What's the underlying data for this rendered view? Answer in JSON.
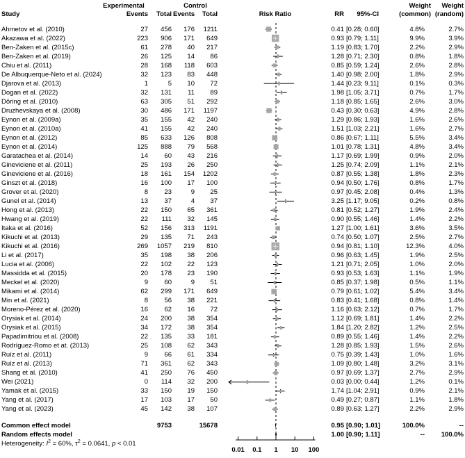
{
  "header": {
    "study": "Study",
    "experimental": "Experimental",
    "control": "Control",
    "exp_events": "Events",
    "exp_total": "Total",
    "ctrl_events": "Events",
    "ctrl_total": "Total",
    "risk_ratio": "Risk Ratio",
    "rr": "RR",
    "ci": "95%-CI",
    "weight_common_line1": "Weight",
    "weight_common_line2": "(common)",
    "weight_random_line1": "Weight",
    "weight_random_line2": "(random)"
  },
  "heterogeneity_parts": [
    {
      "t": "Heterogeneity: "
    },
    {
      "t": "I",
      "i": true
    },
    {
      "t": "2",
      "sup": true
    },
    {
      "t": " = 60%, "
    },
    {
      "t": "τ"
    },
    {
      "t": "2",
      "sup": true
    },
    {
      "t": " = 0.0641, "
    },
    {
      "t": "p",
      "i": true
    },
    {
      "t": " < 0.01"
    }
  ],
  "colors": {
    "square": "#a6a6a6",
    "square_cross": "#d9d9d9",
    "line": "#000000",
    "diamond": "#000000",
    "text": "#000000"
  },
  "chart_data": {
    "type": "forest",
    "title": "Risk Ratio",
    "x_scale": "log",
    "x_ticks": [
      0.01,
      0.1,
      1,
      10,
      100
    ],
    "ref_line": 1,
    "studies": [
      {
        "name": "Ahmetov et al. (2010)",
        "exp_events": 27,
        "exp_total": 456,
        "ctrl_events": 176,
        "ctrl_total": 1211,
        "rr": 0.41,
        "ci_low": 0.28,
        "ci_high": 0.6,
        "weight_common": 4.8,
        "weight_random": 2.7
      },
      {
        "name": "Akazawa et al. (2022)",
        "exp_events": 223,
        "exp_total": 906,
        "ctrl_events": 171,
        "ctrl_total": 649,
        "rr": 0.93,
        "ci_low": 0.79,
        "ci_high": 1.11,
        "weight_common": 9.9,
        "weight_random": 3.9
      },
      {
        "name": "Ben-Zaken et al. (2015c)",
        "exp_events": 61,
        "exp_total": 278,
        "ctrl_events": 40,
        "ctrl_total": 217,
        "rr": 1.19,
        "ci_low": 0.83,
        "ci_high": 1.7,
        "weight_common": 2.2,
        "weight_random": 2.9
      },
      {
        "name": "Ben-Zaken et al. (2019)",
        "exp_events": 26,
        "exp_total": 125,
        "ctrl_events": 14,
        "ctrl_total": 86,
        "rr": 1.28,
        "ci_low": 0.71,
        "ci_high": 2.3,
        "weight_common": 0.8,
        "weight_random": 1.8
      },
      {
        "name": "Chiu et al. (2011)",
        "exp_events": 28,
        "exp_total": 168,
        "ctrl_events": 118,
        "ctrl_total": 603,
        "rr": 0.85,
        "ci_low": 0.59,
        "ci_high": 1.24,
        "weight_common": 2.6,
        "weight_random": 2.8
      },
      {
        "name": "De Albuquerque-Neto et al. (2024)",
        "exp_events": 32,
        "exp_total": 123,
        "ctrl_events": 83,
        "ctrl_total": 448,
        "rr": 1.4,
        "ci_low": 0.98,
        "ci_high": 2.0,
        "weight_common": 1.8,
        "weight_random": 2.9
      },
      {
        "name": "Djarova et al. (2013)",
        "exp_events": 1,
        "exp_total": 5,
        "ctrl_events": 10,
        "ctrl_total": 72,
        "rr": 1.44,
        "ci_low": 0.23,
        "ci_high": 9.11,
        "weight_common": 0.1,
        "weight_random": 0.3
      },
      {
        "name": "Dogan et al. (2022)",
        "exp_events": 32,
        "exp_total": 131,
        "ctrl_events": 11,
        "ctrl_total": 89,
        "rr": 1.98,
        "ci_low": 1.05,
        "ci_high": 3.71,
        "weight_common": 0.7,
        "weight_random": 1.7
      },
      {
        "name": "Döring et al. (2010)",
        "exp_events": 63,
        "exp_total": 305,
        "ctrl_events": 51,
        "ctrl_total": 292,
        "rr": 1.18,
        "ci_low": 0.85,
        "ci_high": 1.65,
        "weight_common": 2.6,
        "weight_random": 3.0
      },
      {
        "name": "Druzhevskaya et al. (2008)",
        "exp_events": 30,
        "exp_total": 486,
        "ctrl_events": 171,
        "ctrl_total": 1197,
        "rr": 0.43,
        "ci_low": 0.3,
        "ci_high": 0.63,
        "weight_common": 4.9,
        "weight_random": 2.8
      },
      {
        "name": "Eynon et al. (2009a)",
        "exp_events": 35,
        "exp_total": 155,
        "ctrl_events": 42,
        "ctrl_total": 240,
        "rr": 1.29,
        "ci_low": 0.86,
        "ci_high": 1.93,
        "weight_common": 1.6,
        "weight_random": 2.6
      },
      {
        "name": "Eynon et al. (2010a)",
        "exp_events": 41,
        "exp_total": 155,
        "ctrl_events": 42,
        "ctrl_total": 240,
        "rr": 1.51,
        "ci_low": 1.03,
        "ci_high": 2.21,
        "weight_common": 1.6,
        "weight_random": 2.7
      },
      {
        "name": "Eynon et al. (2012)",
        "exp_events": 85,
        "exp_total": 633,
        "ctrl_events": 126,
        "ctrl_total": 808,
        "rr": 0.86,
        "ci_low": 0.67,
        "ci_high": 1.11,
        "weight_common": 5.5,
        "weight_random": 3.4
      },
      {
        "name": "Eynon et al. (2014)",
        "exp_events": 125,
        "exp_total": 888,
        "ctrl_events": 79,
        "ctrl_total": 568,
        "rr": 1.01,
        "ci_low": 0.78,
        "ci_high": 1.31,
        "weight_common": 4.8,
        "weight_random": 3.4
      },
      {
        "name": "Garatachea et al. (2014)",
        "exp_events": 14,
        "exp_total": 60,
        "ctrl_events": 43,
        "ctrl_total": 216,
        "rr": 1.17,
        "ci_low": 0.69,
        "ci_high": 1.99,
        "weight_common": 0.9,
        "weight_random": 2.0
      },
      {
        "name": "Gineviciene et al. (2011)",
        "exp_events": 25,
        "exp_total": 193,
        "ctrl_events": 26,
        "ctrl_total": 250,
        "rr": 1.25,
        "ci_low": 0.74,
        "ci_high": 2.09,
        "weight_common": 1.1,
        "weight_random": 2.1
      },
      {
        "name": "Gineviciene et al. (2016)",
        "exp_events": 18,
        "exp_total": 161,
        "ctrl_events": 154,
        "ctrl_total": 1202,
        "rr": 0.87,
        "ci_low": 0.55,
        "ci_high": 1.38,
        "weight_common": 1.8,
        "weight_random": 2.3
      },
      {
        "name": "Ginszt et al. (2018)",
        "exp_events": 16,
        "exp_total": 100,
        "ctrl_events": 17,
        "ctrl_total": 100,
        "rr": 0.94,
        "ci_low": 0.5,
        "ci_high": 1.76,
        "weight_common": 0.8,
        "weight_random": 1.7
      },
      {
        "name": "Grover et al. (2020)",
        "exp_events": 8,
        "exp_total": 23,
        "ctrl_events": 9,
        "ctrl_total": 25,
        "rr": 0.97,
        "ci_low": 0.45,
        "ci_high": 2.08,
        "weight_common": 0.4,
        "weight_random": 1.3
      },
      {
        "name": "Gunel et al. (2014)",
        "exp_events": 13,
        "exp_total": 37,
        "ctrl_events": 4,
        "ctrl_total": 37,
        "rr": 3.25,
        "ci_low": 1.17,
        "ci_high": 9.05,
        "weight_common": 0.2,
        "weight_random": 0.8
      },
      {
        "name": "Hong et al. (2013)",
        "exp_events": 22,
        "exp_total": 150,
        "ctrl_events": 65,
        "ctrl_total": 361,
        "rr": 0.81,
        "ci_low": 0.52,
        "ci_high": 1.27,
        "weight_common": 1.9,
        "weight_random": 2.4
      },
      {
        "name": "Hwang et al. (2019)",
        "exp_events": 22,
        "exp_total": 111,
        "ctrl_events": 32,
        "ctrl_total": 145,
        "rr": 0.9,
        "ci_low": 0.55,
        "ci_high": 1.46,
        "weight_common": 1.4,
        "weight_random": 2.2
      },
      {
        "name": "Itaka et al. (2016)",
        "exp_events": 52,
        "exp_total": 156,
        "ctrl_events": 313,
        "ctrl_total": 1191,
        "rr": 1.27,
        "ci_low": 1.0,
        "ci_high": 1.61,
        "weight_common": 3.6,
        "weight_random": 3.5
      },
      {
        "name": "Kikuchi et al. (2013)",
        "exp_events": 29,
        "exp_total": 135,
        "ctrl_events": 71,
        "ctrl_total": 243,
        "rr": 0.74,
        "ci_low": 0.5,
        "ci_high": 1.07,
        "weight_common": 2.5,
        "weight_random": 2.7
      },
      {
        "name": "Kikuchi et al. (2016)",
        "exp_events": 269,
        "exp_total": 1057,
        "ctrl_events": 219,
        "ctrl_total": 810,
        "rr": 0.94,
        "ci_low": 0.81,
        "ci_high": 1.1,
        "weight_common": 12.3,
        "weight_random": 4.0
      },
      {
        "name": "Li et al. (2017)",
        "exp_events": 35,
        "exp_total": 198,
        "ctrl_events": 38,
        "ctrl_total": 206,
        "rr": 0.96,
        "ci_low": 0.63,
        "ci_high": 1.45,
        "weight_common": 1.9,
        "weight_random": 2.5
      },
      {
        "name": "Lucia et al. (2006)",
        "exp_events": 22,
        "exp_total": 102,
        "ctrl_events": 22,
        "ctrl_total": 123,
        "rr": 1.21,
        "ci_low": 0.71,
        "ci_high": 2.05,
        "weight_common": 1.0,
        "weight_random": 2.0
      },
      {
        "name": "Massidda et al. (2015)",
        "exp_events": 20,
        "exp_total": 178,
        "ctrl_events": 23,
        "ctrl_total": 190,
        "rr": 0.93,
        "ci_low": 0.53,
        "ci_high": 1.63,
        "weight_common": 1.1,
        "weight_random": 1.9
      },
      {
        "name": "Meckel et al. (2020)",
        "exp_events": 9,
        "exp_total": 60,
        "ctrl_events": 9,
        "ctrl_total": 51,
        "rr": 0.85,
        "ci_low": 0.37,
        "ci_high": 1.98,
        "weight_common": 0.5,
        "weight_random": 1.1
      },
      {
        "name": "Mikami et al. (2014)",
        "exp_events": 62,
        "exp_total": 299,
        "ctrl_events": 171,
        "ctrl_total": 649,
        "rr": 0.79,
        "ci_low": 0.61,
        "ci_high": 1.02,
        "weight_common": 5.4,
        "weight_random": 3.4
      },
      {
        "name": "Min et al. (2021)",
        "exp_events": 8,
        "exp_total": 56,
        "ctrl_events": 38,
        "ctrl_total": 221,
        "rr": 0.83,
        "ci_low": 0.41,
        "ci_high": 1.68,
        "weight_common": 0.8,
        "weight_random": 1.4
      },
      {
        "name": "Moreno-Pérez et al. (2020)",
        "exp_events": 16,
        "exp_total": 62,
        "ctrl_events": 16,
        "ctrl_total": 72,
        "rr": 1.16,
        "ci_low": 0.63,
        "ci_high": 2.12,
        "weight_common": 0.7,
        "weight_random": 1.7
      },
      {
        "name": "Orysiak et al. (2014)",
        "exp_events": 24,
        "exp_total": 200,
        "ctrl_events": 38,
        "ctrl_total": 354,
        "rr": 1.12,
        "ci_low": 0.69,
        "ci_high": 1.81,
        "weight_common": 1.4,
        "weight_random": 2.2
      },
      {
        "name": "Orysiak et al. (2015)",
        "exp_events": 34,
        "exp_total": 172,
        "ctrl_events": 38,
        "ctrl_total": 354,
        "rr": 1.84,
        "ci_low": 1.2,
        "ci_high": 2.82,
        "weight_common": 1.2,
        "weight_random": 2.5
      },
      {
        "name": "Papadimitriou et al. (2008)",
        "exp_events": 22,
        "exp_total": 135,
        "ctrl_events": 33,
        "ctrl_total": 181,
        "rr": 0.89,
        "ci_low": 0.55,
        "ci_high": 1.46,
        "weight_common": 1.4,
        "weight_random": 2.2
      },
      {
        "name": "Rodríguez-Romo et at. (2013)",
        "exp_events": 25,
        "exp_total": 108,
        "ctrl_events": 62,
        "ctrl_total": 343,
        "rr": 1.28,
        "ci_low": 0.85,
        "ci_high": 1.93,
        "weight_common": 1.5,
        "weight_random": 2.6
      },
      {
        "name": "Ruíz et al. (2011)",
        "exp_events": 9,
        "exp_total": 66,
        "ctrl_events": 61,
        "ctrl_total": 334,
        "rr": 0.75,
        "ci_low": 0.39,
        "ci_high": 1.43,
        "weight_common": 1.0,
        "weight_random": 1.6
      },
      {
        "name": "Ruíz et al. (2013)",
        "exp_events": 71,
        "exp_total": 361,
        "ctrl_events": 62,
        "ctrl_total": 343,
        "rr": 1.09,
        "ci_low": 0.8,
        "ci_high": 1.48,
        "weight_common": 3.2,
        "weight_random": 3.1
      },
      {
        "name": "Shang et al. (2010)",
        "exp_events": 41,
        "exp_total": 250,
        "ctrl_events": 76,
        "ctrl_total": 450,
        "rr": 0.97,
        "ci_low": 0.69,
        "ci_high": 1.37,
        "weight_common": 2.7,
        "weight_random": 2.9
      },
      {
        "name": "Wei (2021)",
        "exp_events": 0,
        "exp_total": 114,
        "ctrl_events": 32,
        "ctrl_total": 200,
        "rr": 0.03,
        "ci_low": 0.0,
        "ci_high": 0.44,
        "weight_common": 1.2,
        "weight_random": 0.1
      },
      {
        "name": "Yamak et al. (2015)",
        "exp_events": 33,
        "exp_total": 150,
        "ctrl_events": 19,
        "ctrl_total": 150,
        "rr": 1.74,
        "ci_low": 1.04,
        "ci_high": 2.91,
        "weight_common": 0.9,
        "weight_random": 2.1
      },
      {
        "name": "Yang et al. (2017)",
        "exp_events": 17,
        "exp_total": 103,
        "ctrl_events": 17,
        "ctrl_total": 50,
        "rr": 0.49,
        "ci_low": 0.27,
        "ci_high": 0.87,
        "weight_common": 1.1,
        "weight_random": 1.8
      },
      {
        "name": "Yang et al. (2023)",
        "exp_events": 45,
        "exp_total": 142,
        "ctrl_events": 38,
        "ctrl_total": 107,
        "rr": 0.89,
        "ci_low": 0.63,
        "ci_high": 1.27,
        "weight_common": 2.2,
        "weight_random": 2.9
      }
    ],
    "summaries": [
      {
        "name": "Common effect model",
        "exp_total": 9753,
        "ctrl_total": 15678,
        "rr": 0.95,
        "ci_low": 0.9,
        "ci_high": 1.01,
        "weight_common": 100.0,
        "weight_random": null
      },
      {
        "name": "Random effects model",
        "exp_total": null,
        "ctrl_total": null,
        "rr": 1.0,
        "ci_low": 0.9,
        "ci_high": 1.11,
        "weight_common": null,
        "weight_random": 100.0
      }
    ]
  }
}
